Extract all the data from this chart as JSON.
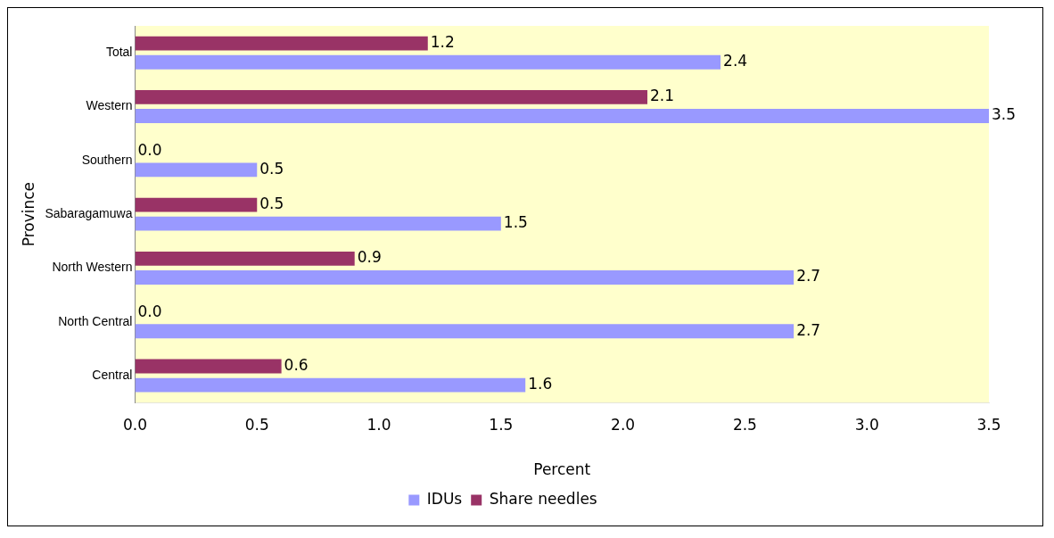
{
  "chart_data": {
    "type": "bar",
    "orientation": "horizontal",
    "xlabel": "Percent",
    "ylabel": "Province",
    "categories": [
      "Total",
      "Western",
      "Southern",
      "Sabaragamuwa",
      "North Western",
      "North Central",
      "Central"
    ],
    "series": [
      {
        "name": "IDUs",
        "color": "#9999ff",
        "values": [
          2.4,
          3.5,
          0.5,
          1.5,
          2.7,
          2.7,
          1.6
        ],
        "value_labels": [
          "2.4",
          "3.5",
          "0.5",
          "1.5",
          "2.7",
          "2.7",
          "1.6"
        ]
      },
      {
        "name": "Share needles",
        "color": "#993366",
        "values": [
          1.2,
          2.1,
          0.0,
          0.5,
          0.9,
          0.0,
          0.6
        ],
        "value_labels": [
          "1.2",
          "2.1",
          "0.0",
          "0.5",
          "0.9",
          "0.0",
          "0.6"
        ]
      }
    ],
    "xlim": [
      0,
      3.5
    ],
    "xticks": [
      {
        "value": 0,
        "label": "0.0"
      },
      {
        "value": 0.5,
        "label": "0.5"
      },
      {
        "value": 1,
        "label": "1.0"
      },
      {
        "value": 1.5,
        "label": "1.5"
      },
      {
        "value": 2,
        "label": "2.0"
      },
      {
        "value": 2.5,
        "label": "2.5"
      },
      {
        "value": 3,
        "label": "3.0"
      },
      {
        "value": 3.5,
        "label": "3.5"
      }
    ],
    "grid": false,
    "legend": "bottom"
  }
}
